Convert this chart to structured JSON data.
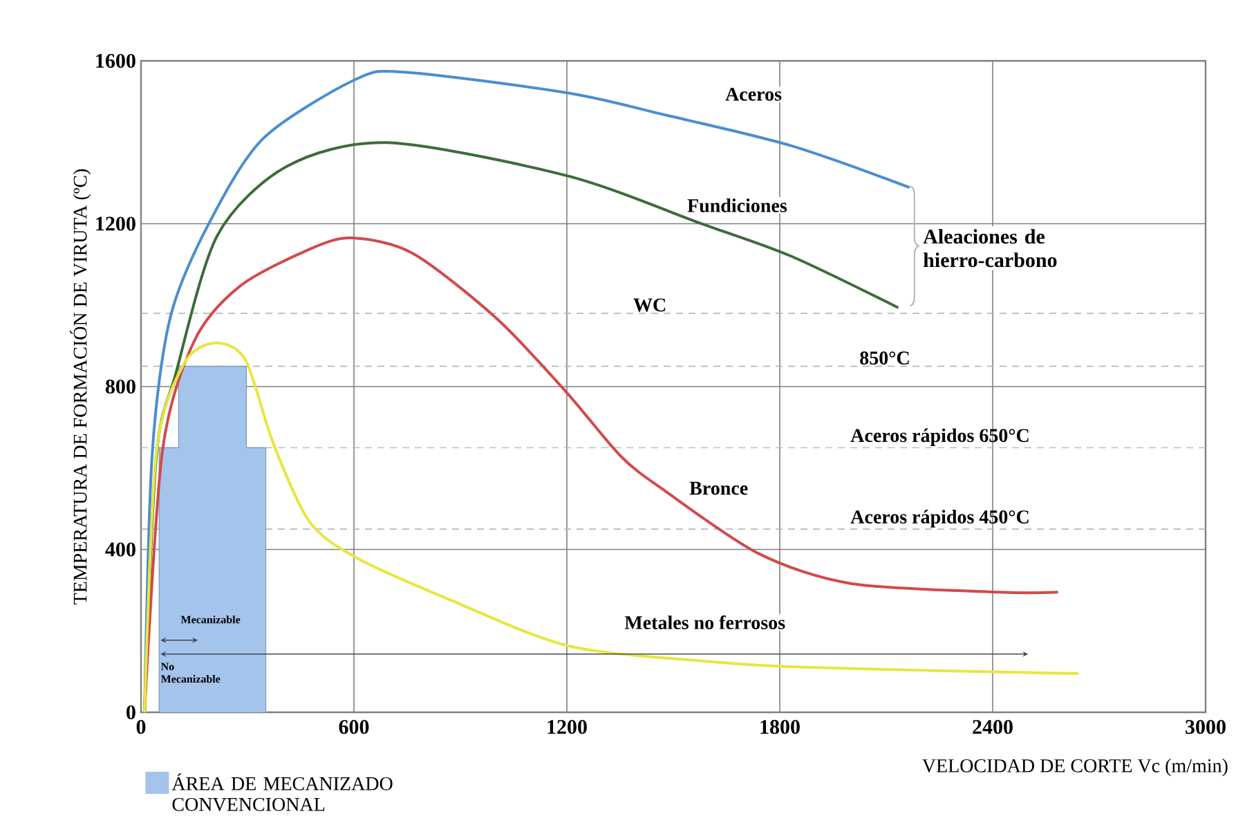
{
  "chart_data": {
    "type": "line",
    "xlabel": "VELOCIDAD DE CORTE Vc (m/min)",
    "ylabel": "TEMPERATURA DE FORMACIÓN DE VIRUTA (ºC)",
    "xlim": [
      0,
      3000
    ],
    "ylim": [
      0,
      1600
    ],
    "xticks": [
      0,
      600,
      1200,
      1800,
      2400,
      3000
    ],
    "yticks": [
      0,
      400,
      800,
      1200,
      1600
    ],
    "grid": true,
    "legend": "bottom left",
    "series": [
      {
        "type": "area",
        "name": "ÁREA DE MECANIZADO CONVENCIONAL",
        "color": "#a4c4ec",
        "x": [
          51,
          51,
          106,
          106,
          297,
          297,
          352,
          352
        ],
        "values": [
          0,
          650,
          650,
          850,
          850,
          650,
          650,
          0
        ]
      },
      {
        "name": "Aceros",
        "color": "#4a8ed0",
        "x": [
          10,
          31,
          82,
          188,
          344,
          606,
          747,
          1204,
          1478,
          1830,
          2163
        ],
        "values": [
          0,
          628,
          968,
          1195,
          1409,
          1555,
          1572,
          1521,
          1467,
          1392,
          1290
        ]
      },
      {
        "name": "Fundiciones",
        "color": "#3f6b3a",
        "x": [
          10,
          43,
          98,
          215,
          411,
          696,
          1204,
          1583,
          1830,
          2131
        ],
        "values": [
          0,
          628,
          832,
          1171,
          1341,
          1399,
          1317,
          1199,
          1121,
          995
        ]
      },
      {
        "name": "Bronce",
        "color": "#d24a4a",
        "x": [
          10,
          60,
          149,
          278,
          474,
          594,
          766,
          1001,
          1197,
          1353,
          1478,
          1740,
          2002,
          2417,
          2581
        ],
        "values": [
          0,
          640,
          910,
          1046,
          1137,
          1165,
          1127,
          968,
          788,
          628,
          543,
          390,
          316,
          295,
          295
        ]
      },
      {
        "name": "Metales no ferrosos",
        "color": "#e8e640",
        "x": [
          10,
          43,
          121,
          208,
          294,
          372,
          474,
          606,
          866,
          1204,
          1583,
          1822,
          2260,
          2639
        ],
        "values": [
          0,
          638,
          856,
          907,
          866,
          662,
          469,
          380,
          278,
          163,
          126,
          112,
          102,
          95
        ]
      },
      {
        "color": "#404858",
        "marker": "cross",
        "x": [
          55,
          2500
        ],
        "values": [
          143,
          143
        ]
      },
      {
        "color": "#404858",
        "marker": "cross",
        "x": [
          160,
          55
        ],
        "values": [
          177,
          177
        ]
      }
    ],
    "ref_lines": [
      {
        "axis": "y",
        "value": 980,
        "label": "WC",
        "color": "#b8b8b8",
        "line_style": "dashed"
      },
      {
        "axis": "y",
        "value": 850,
        "label": "850°C",
        "color": "#b8b8b8",
        "line_style": "dashed"
      },
      {
        "axis": "y",
        "value": 650,
        "label": "Aceros rápidos 650°C",
        "color": "#b8b8b8",
        "line_style": "dashed"
      },
      {
        "axis": "y",
        "value": 450,
        "label": "Aceros rápidos 450°C",
        "color": "#b8b8b8",
        "line_style": "dashed"
      }
    ],
    "annotations": [
      "Mecanizable",
      "No Mecanizable",
      "Aleaciones de hierro-carbono"
    ]
  }
}
